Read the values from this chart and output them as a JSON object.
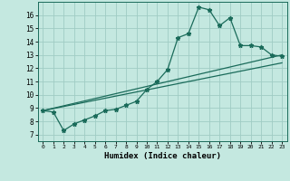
{
  "xlabel": "Humidex (Indice chaleur)",
  "bg_color": "#c4e8e0",
  "line_color": "#1a6b5a",
  "grid_color": "#a0ccc4",
  "xlim": [
    -0.5,
    23.5
  ],
  "ylim": [
    6.5,
    17.0
  ],
  "yticks": [
    7,
    8,
    9,
    10,
    11,
    12,
    13,
    14,
    15,
    16
  ],
  "xticks": [
    0,
    1,
    2,
    3,
    4,
    5,
    6,
    7,
    8,
    9,
    10,
    11,
    12,
    13,
    14,
    15,
    16,
    17,
    18,
    19,
    20,
    21,
    22,
    23
  ],
  "line1_x": [
    0,
    1,
    2,
    3,
    4,
    5,
    6,
    7,
    8,
    9,
    10,
    11,
    12,
    13,
    14,
    15,
    16,
    17,
    18,
    19,
    20,
    21,
    22,
    23
  ],
  "line1_y": [
    8.8,
    8.7,
    7.3,
    7.8,
    8.1,
    8.4,
    8.8,
    8.9,
    9.2,
    9.5,
    10.4,
    11.0,
    11.9,
    14.3,
    14.6,
    16.6,
    16.4,
    15.2,
    15.8,
    13.7,
    13.7,
    13.6,
    13.0,
    12.9
  ],
  "line2_x": [
    0,
    23
  ],
  "line2_y": [
    8.8,
    13.0
  ],
  "line3_x": [
    0,
    23
  ],
  "line3_y": [
    8.8,
    12.4
  ]
}
